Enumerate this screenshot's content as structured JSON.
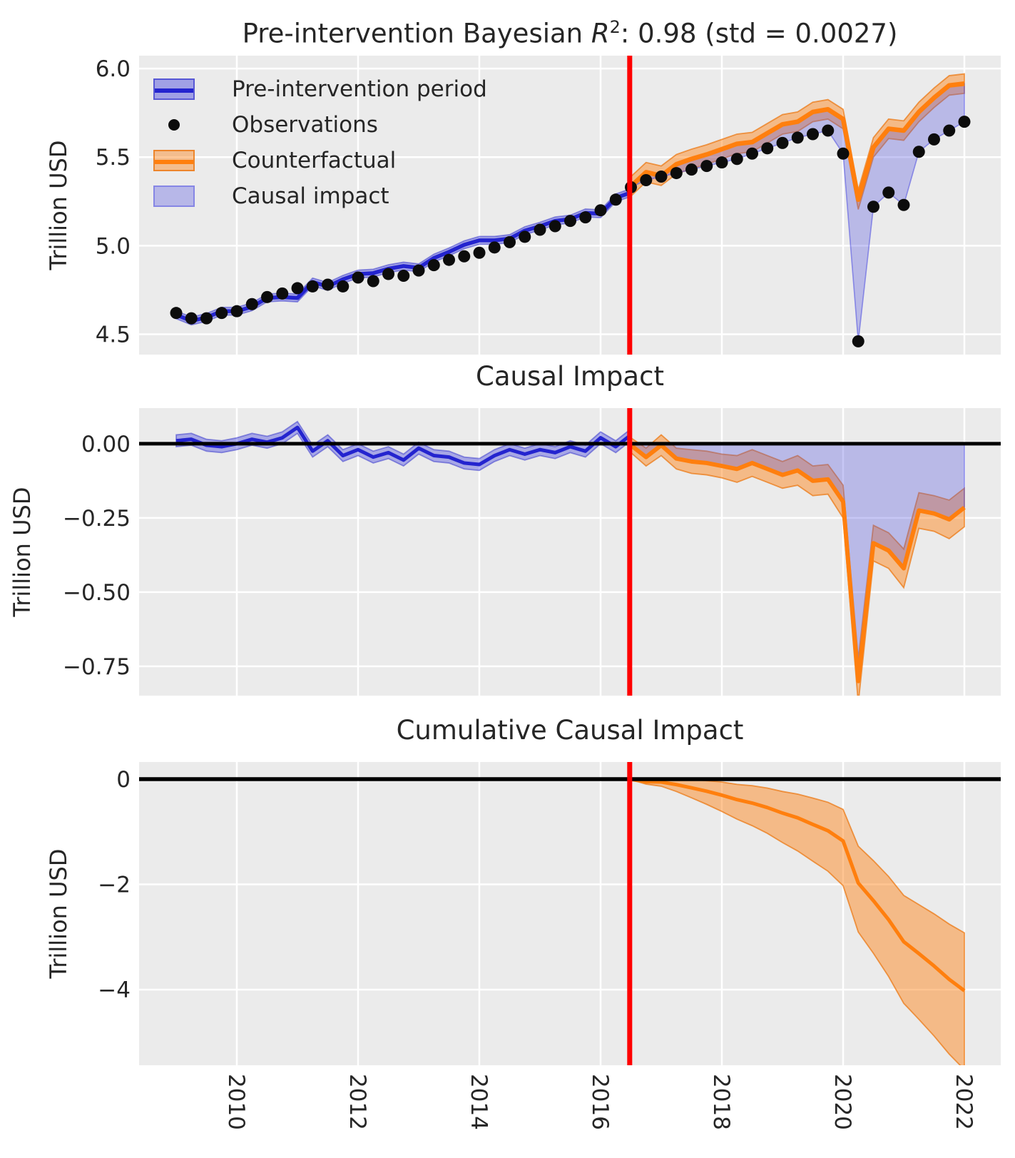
{
  "figure_titles": {
    "panel1_parts": {
      "prefix": "Pre-intervention Bayesian ",
      "r_symbol": "R",
      "exponent": "2",
      "suffix": ": 0.98 (std = 0.0027)"
    },
    "panel2": "Causal Impact",
    "panel3": "Cumulative Causal Impact"
  },
  "legend": {
    "items": [
      {
        "label": "Pre-intervention period",
        "swatch": "blue-band"
      },
      {
        "label": "Observations",
        "swatch": "black-dot"
      },
      {
        "label": "Counterfactual",
        "swatch": "orange-band"
      },
      {
        "label": "Causal impact",
        "swatch": "light-blue-patch"
      }
    ]
  },
  "colors": {
    "blue_line": "#2424cf",
    "blue_band": "rgba(40,40,220,0.35)",
    "causal_fill": "rgba(85,85,225,0.33)",
    "causal_fill_edge": "rgba(85,85,225,0.6)",
    "orange_line": "#ff7f0e",
    "orange_band": "rgba(255,127,14,0.45)",
    "orange_band_edge": "rgba(235,115,10,0.7)",
    "observation_dot": "#0c0c0c",
    "intervention_line": "#ff0000",
    "zero_line": "#000000",
    "axes_bg": "#ebebeb",
    "grid": "#ffffff",
    "text": "#262626"
  },
  "x_axis": {
    "xlim": [
      2008.388,
      2022.6
    ],
    "ticks": [
      2010,
      2012,
      2014,
      2016,
      2018,
      2020,
      2022
    ],
    "labels": [
      "2010",
      "2012",
      "2014",
      "2016",
      "2018",
      "2020",
      "2022"
    ],
    "intervention_x": 2016.48
  },
  "chart_data": [
    {
      "type": "line",
      "title": "Pre-intervention Bayesian R^2: 0.98 (std = 0.0027)",
      "ylabel": "Trillion USD",
      "ylim": [
        4.385,
        6.073
      ],
      "yticks": [
        6.0,
        5.5,
        5.0,
        4.5
      ],
      "ytick_labels": [
        "6.0",
        "5.5",
        "5.0",
        "4.5"
      ],
      "grid": true,
      "legend_position": "upper left",
      "series": {
        "observations": {
          "name": "Observations",
          "x_start": 2009.0,
          "x_step": 0.25,
          "y": [
            4.62,
            4.59,
            4.59,
            4.62,
            4.63,
            4.67,
            4.71,
            4.73,
            4.76,
            4.77,
            4.78,
            4.77,
            4.82,
            4.8,
            4.84,
            4.83,
            4.86,
            4.89,
            4.92,
            4.94,
            4.96,
            4.99,
            5.02,
            5.05,
            5.09,
            5.11,
            5.14,
            5.16,
            5.2,
            5.26,
            5.33,
            5.37,
            5.39,
            5.41,
            5.43,
            5.45,
            5.47,
            5.49,
            5.52,
            5.55,
            5.58,
            5.61,
            5.63,
            5.65,
            5.52,
            4.46,
            5.22,
            5.3,
            5.23,
            5.53,
            5.6,
            5.65,
            5.7
          ]
        },
        "pre_intervention_fit": {
          "name": "Pre-intervention period",
          "x_start": 2009.0,
          "x_step": 0.25,
          "y": [
            4.61,
            4.575,
            4.595,
            4.63,
            4.63,
            4.655,
            4.705,
            4.71,
            4.705,
            4.795,
            4.77,
            4.81,
            4.84,
            4.845,
            4.87,
            4.885,
            4.875,
            4.93,
            4.965,
            5.005,
            5.03,
            5.03,
            5.04,
            5.085,
            5.11,
            5.14,
            5.15,
            5.185,
            5.18,
            5.27,
            5.3
          ],
          "band_halfwidth": 0.022
        },
        "counterfactual": {
          "name": "Counterfactual",
          "x_start": 2016.5,
          "x_step": 0.25,
          "y": [
            5.335,
            5.415,
            5.395,
            5.46,
            5.49,
            5.515,
            5.545,
            5.575,
            5.585,
            5.635,
            5.685,
            5.7,
            5.755,
            5.77,
            5.715,
            5.26,
            5.555,
            5.66,
            5.65,
            5.755,
            5.835,
            5.905,
            5.915
          ],
          "band_halfwidth": 0.055
        }
      }
    },
    {
      "type": "line",
      "title": "Causal Impact",
      "ylabel": "Trillion USD",
      "ylim": [
        -0.849,
        0.12
      ],
      "yticks": [
        0.0,
        -0.25,
        -0.5,
        -0.75
      ],
      "ytick_labels": [
        "0.00",
        "−0.25",
        "−0.50",
        "−0.75"
      ],
      "grid": true,
      "zero_line": true,
      "series": {
        "impact_pre": {
          "name": "Causal impact (pre-intervention)",
          "x_start": 2009.0,
          "x_step": 0.25,
          "y": [
            0.01,
            0.015,
            -0.005,
            -0.01,
            0.0,
            0.015,
            0.005,
            0.02,
            0.055,
            -0.025,
            0.01,
            -0.04,
            -0.02,
            -0.045,
            -0.03,
            -0.055,
            -0.015,
            -0.04,
            -0.045,
            -0.065,
            -0.07,
            -0.04,
            -0.02,
            -0.035,
            -0.02,
            -0.03,
            -0.01,
            -0.025,
            0.02,
            -0.01,
            0.03
          ],
          "band_halfwidth": 0.02
        },
        "impact_post": {
          "name": "Causal impact (post-intervention)",
          "x_start": 2016.5,
          "x_step": 0.25,
          "y": [
            -0.005,
            -0.045,
            -0.005,
            -0.05,
            -0.06,
            -0.065,
            -0.075,
            -0.085,
            -0.065,
            -0.085,
            -0.105,
            -0.09,
            -0.125,
            -0.12,
            -0.195,
            -0.8,
            -0.335,
            -0.36,
            -0.42,
            -0.225,
            -0.235,
            -0.255,
            -0.215
          ],
          "band_offsets": [
            0.025,
            0.03,
            0.035,
            0.035,
            0.04,
            0.04,
            0.04,
            0.045,
            0.045,
            0.045,
            0.045,
            0.05,
            0.05,
            0.05,
            0.055,
            0.075,
            0.06,
            0.06,
            0.065,
            0.06,
            0.06,
            0.065,
            0.065
          ]
        }
      }
    },
    {
      "type": "line",
      "title": "Cumulative Causal Impact",
      "ylabel": "Trillion USD",
      "ylim": [
        -5.437,
        0.325
      ],
      "yticks": [
        0,
        -2,
        -4
      ],
      "ytick_labels": [
        "0",
        "−2",
        "−4"
      ],
      "grid": true,
      "zero_line": true,
      "series": {
        "cumulative_impact": {
          "name": "Cumulative causal impact",
          "x_start": 2016.5,
          "x_step": 0.25,
          "y": [
            -0.005,
            -0.05,
            -0.055,
            -0.105,
            -0.165,
            -0.23,
            -0.305,
            -0.39,
            -0.455,
            -0.54,
            -0.645,
            -0.735,
            -0.86,
            -0.98,
            -1.175,
            -1.975,
            -2.31,
            -2.67,
            -3.09,
            -3.315,
            -3.55,
            -3.805,
            -4.02
          ],
          "band_upper_offsets": [
            0.005,
            0.04,
            0.07,
            0.11,
            0.16,
            0.2,
            0.25,
            0.29,
            0.33,
            0.37,
            0.41,
            0.45,
            0.5,
            0.54,
            0.6,
            0.7,
            0.76,
            0.82,
            0.88,
            0.93,
            0.99,
            1.05,
            1.1
          ],
          "band_lower_offsets": [
            0.005,
            0.045,
            0.08,
            0.13,
            0.19,
            0.25,
            0.31,
            0.37,
            0.43,
            0.49,
            0.56,
            0.63,
            0.7,
            0.77,
            0.85,
            0.93,
            1.0,
            1.08,
            1.17,
            1.25,
            1.33,
            1.42,
            1.5
          ]
        }
      }
    }
  ]
}
